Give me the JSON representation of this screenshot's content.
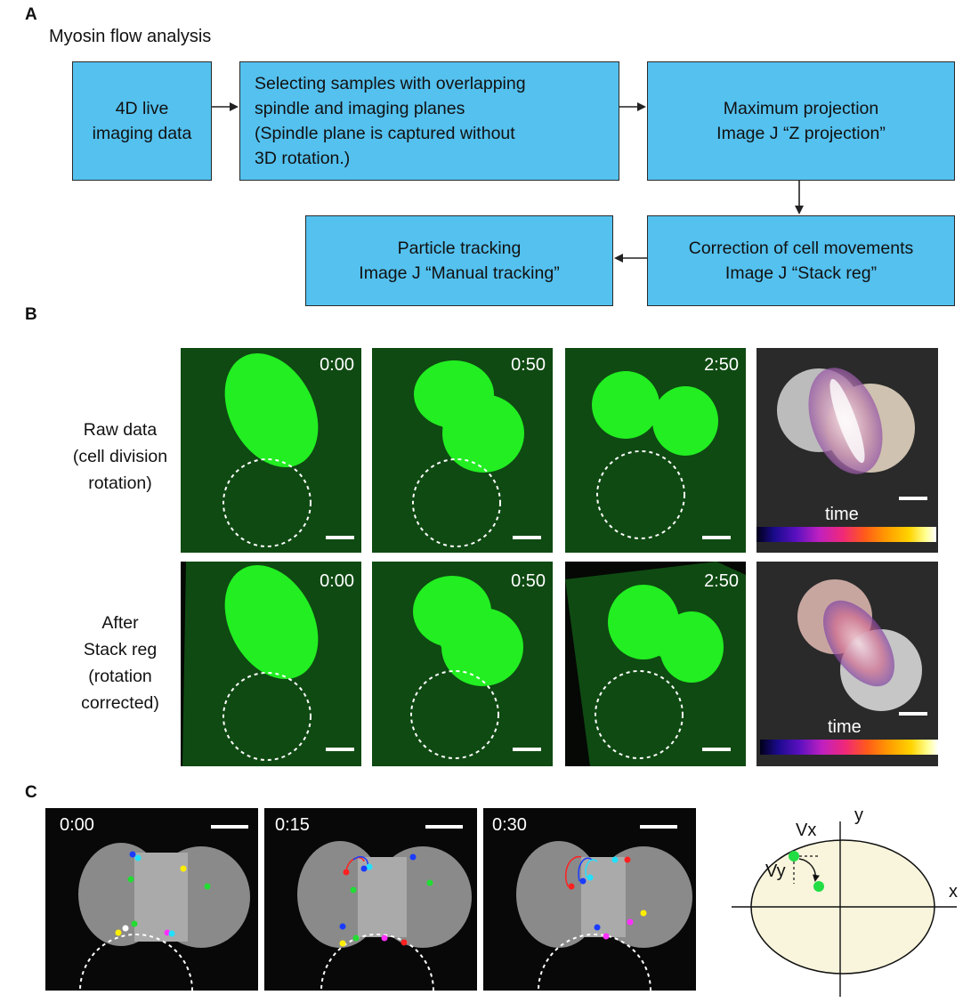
{
  "panel_a": {
    "letter": "A",
    "title": "Myosin flow analysis",
    "steps": [
      {
        "id": "step1",
        "text": "4D live\nimaging data"
      },
      {
        "id": "step2",
        "text": "Selecting samples with overlapping\nspindle and imaging planes\n(Spindle plane is captured without\n3D rotation.)"
      },
      {
        "id": "step3",
        "text": "Maximum projection\nImage J “Z projection”"
      },
      {
        "id": "step4",
        "text": "Correction of cell movements\nImage J “Stack reg”"
      },
      {
        "id": "step5",
        "text": "Particle tracking\nImage J “Manual tracking”"
      }
    ]
  },
  "panel_b": {
    "letter": "B",
    "rows": [
      {
        "label": "Raw data\n(cell division\nrotation)",
        "timestamps": [
          "0:00",
          "0:50",
          "2:50"
        ],
        "time_label": "time"
      },
      {
        "label": "After\nStack reg\n(rotation\ncorrected)",
        "timestamps": [
          "0:00",
          "0:50",
          "2:50"
        ],
        "time_label": "time"
      }
    ],
    "colors": {
      "fluorescence": "#22ee22",
      "background": "#0f4a12"
    }
  },
  "panel_c": {
    "letter": "C",
    "timestamps": [
      "0:00",
      "0:15",
      "0:30"
    ],
    "diagram": {
      "x_label": "x",
      "y_label": "y",
      "vx_label": "Vx",
      "vy_label": "Vy",
      "ellipse_color": "#f9f5dc",
      "particle_color": "#22dd44"
    },
    "track_colors": [
      "#1a3cff",
      "#22e0ff",
      "#ffee00",
      "#22dd33",
      "#ff2020",
      "#ff30ff",
      "#ffffff",
      "#ffaa00"
    ]
  }
}
